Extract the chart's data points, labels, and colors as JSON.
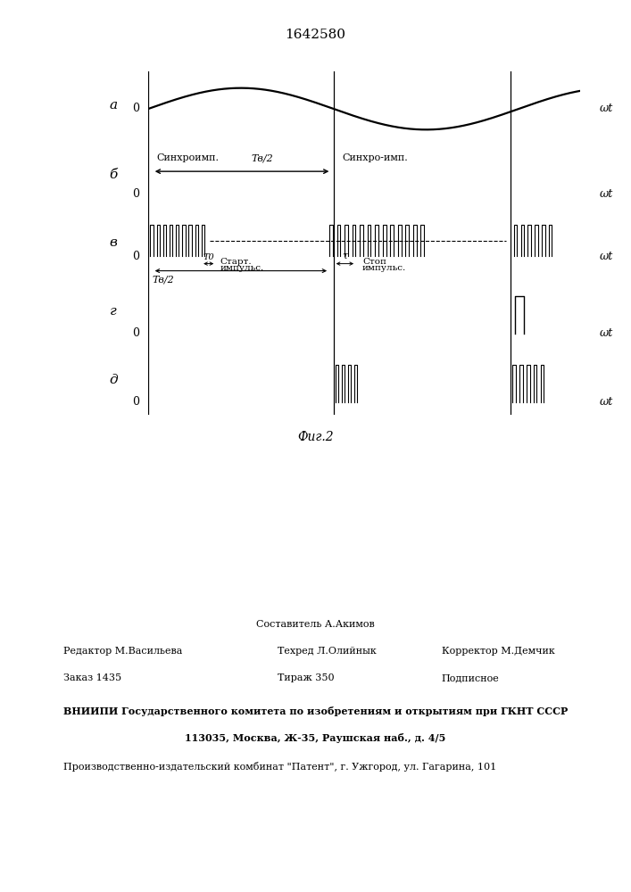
{
  "title": "1642580",
  "fig_label": "Фиг.2",
  "background_color": "#ffffff",
  "row_labels": [
    "а",
    "б",
    "в",
    "г",
    "д"
  ],
  "wt_label": "ωt",
  "synchro_label_1": "Синхроимп.",
  "Ts2_label": "Tв/2",
  "synchro_label_2": "Синхро-имп.",
  "T0_label": "T0",
  "Ts2_2_label": "Tв/2",
  "start_label_1": "Старт.",
  "start_label_2": "импульс.",
  "stop_label_1": "Стоп",
  "stop_label_2": "импульс.",
  "tau_label": "τ",
  "footer_sestavitel": "Составитель А.Акимов",
  "footer_redaktor": "Редактор М.Васильева",
  "footer_tehred": "Техред Л.Олийнык",
  "footer_korrektor": "Корректор М.Демчик",
  "footer_zakaz": "Заказ 1435",
  "footer_tirazh": "Тираж 350",
  "footer_podpisnoe": "Подписное",
  "footer_vniip1": "ВНИИПИ Государственного комитета по изобретениям и открытиям при ГКНТ СССР",
  "footer_vniip2": "113035, Москва, Ж-35, Раушская наб., д. 4/5",
  "footer_proizv": "Производственно-издательский комбинат \"Патент\", г. Ужгород, ул. Гагарина, 101"
}
